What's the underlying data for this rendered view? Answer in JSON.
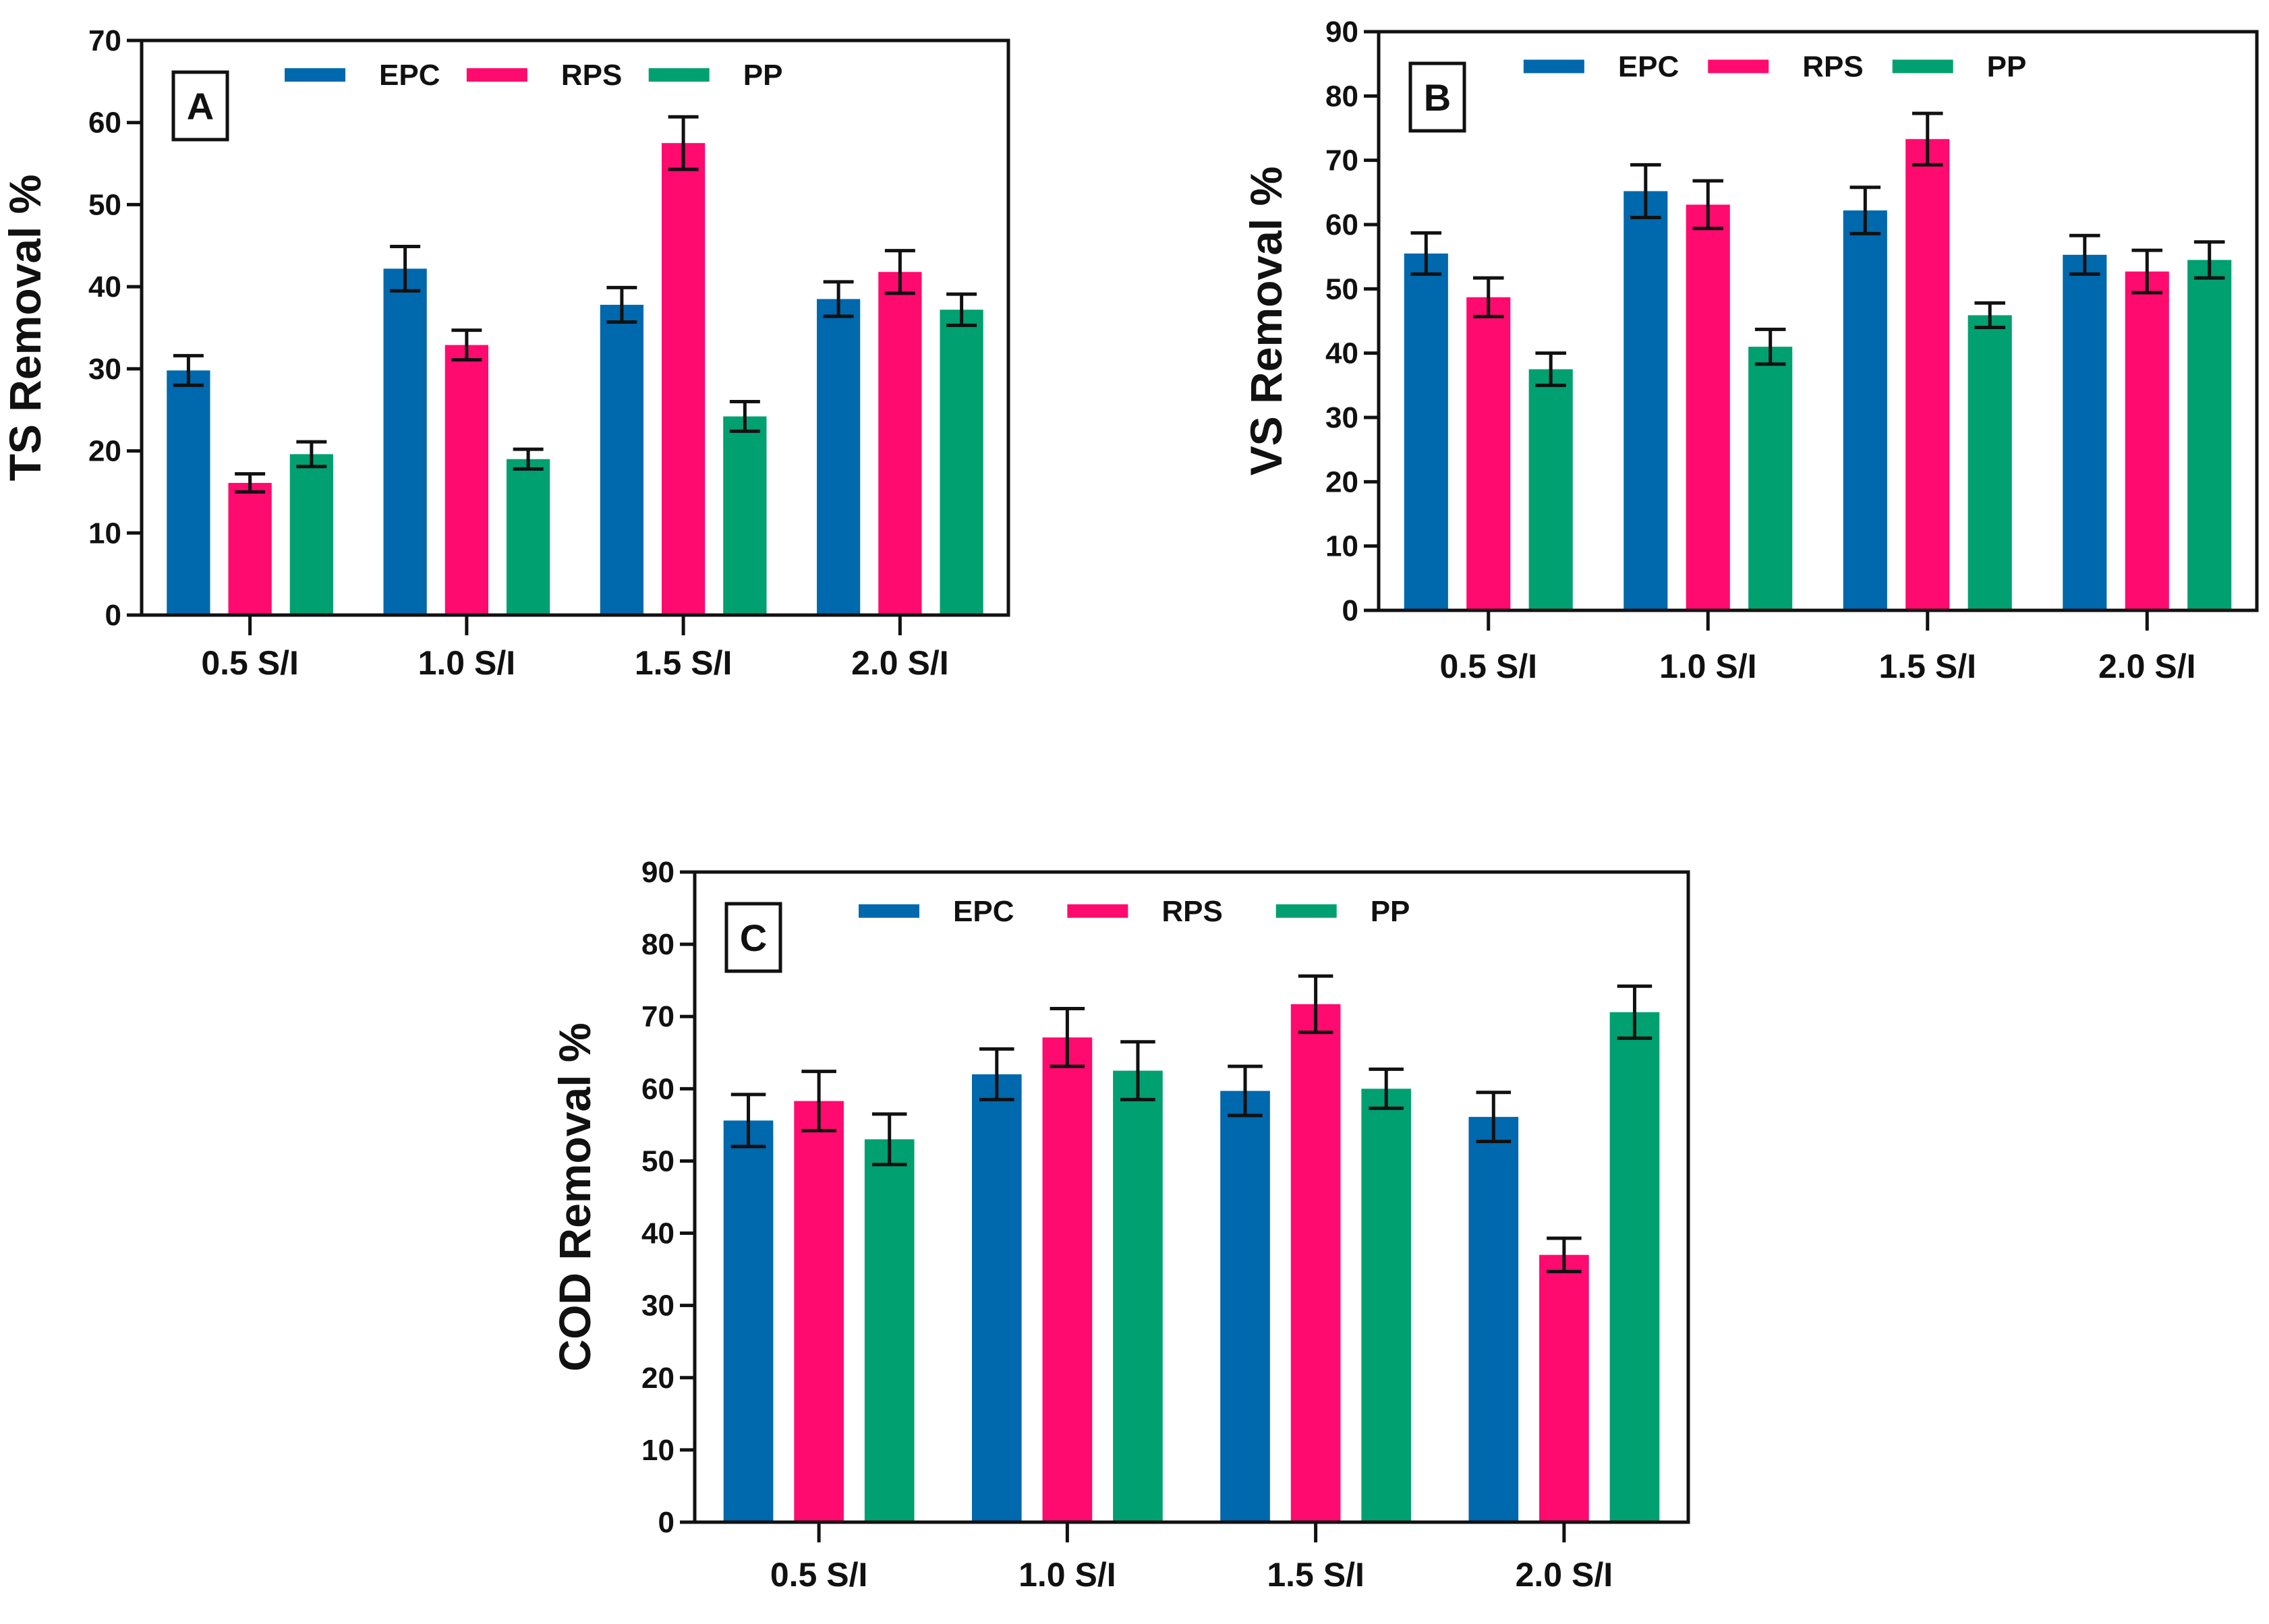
{
  "colors": {
    "EPC": "#0068AD",
    "RPS": "#FF0A6E",
    "PP": "#00A070"
  },
  "chart_data": [
    {
      "type": "bar",
      "panel": "A",
      "title": "",
      "ylabel": "TS Removal %",
      "xlabel": "",
      "ylim": [
        0,
        70
      ],
      "yticks": [
        "0",
        "10",
        "20",
        "30",
        "40",
        "50",
        "60",
        "70"
      ],
      "categories": [
        "0.5 S/I",
        "1.0  S/I",
        "1.5  S/I",
        "2.0  S/I"
      ],
      "legend_position": "top",
      "series": [
        {
          "name": "EPC",
          "values": [
            29.8,
            42.2,
            37.8,
            38.5
          ],
          "errors": [
            1.8,
            2.7,
            2.1,
            2.1
          ]
        },
        {
          "name": "RPS",
          "values": [
            16.1,
            32.9,
            57.5,
            41.8
          ],
          "errors": [
            1.1,
            1.8,
            3.2,
            2.6
          ]
        },
        {
          "name": "PP",
          "values": [
            19.6,
            19.0,
            24.2,
            37.2
          ],
          "errors": [
            1.5,
            1.2,
            1.8,
            1.9
          ]
        }
      ]
    },
    {
      "type": "bar",
      "panel": "B",
      "title": "",
      "ylabel": "VS Removal %",
      "xlabel": "",
      "ylim": [
        0,
        90
      ],
      "yticks": [
        "0",
        "10",
        "20",
        "30",
        "40",
        "50",
        "60",
        "70",
        "80",
        "90"
      ],
      "categories": [
        "0.5 S/I",
        "1.0 S/I",
        "1.5 S/I",
        "2.0 S/I"
      ],
      "legend_position": "top",
      "series": [
        {
          "name": "EPC",
          "values": [
            55.5,
            65.2,
            62.2,
            55.3
          ],
          "errors": [
            3.2,
            4.1,
            3.6,
            3.0
          ]
        },
        {
          "name": "RPS",
          "values": [
            48.7,
            63.1,
            73.3,
            52.7
          ],
          "errors": [
            3.0,
            3.7,
            4.0,
            3.3
          ]
        },
        {
          "name": "PP",
          "values": [
            37.5,
            41.0,
            45.9,
            54.5
          ],
          "errors": [
            2.5,
            2.7,
            1.9,
            2.8
          ]
        }
      ]
    },
    {
      "type": "bar",
      "panel": "C",
      "title": "",
      "ylabel": "COD Removal %",
      "xlabel": "",
      "ylim": [
        0,
        90
      ],
      "yticks": [
        "0",
        "10",
        "20",
        "30",
        "40",
        "50",
        "60",
        "70",
        "80",
        "90"
      ],
      "categories": [
        "0.5 S/I",
        "1.0 S/I",
        "1.5 S/I",
        "2.0 S/I"
      ],
      "legend_position": "top",
      "series": [
        {
          "name": "EPC",
          "values": [
            55.6,
            62.0,
            59.7,
            56.1
          ],
          "errors": [
            3.6,
            3.5,
            3.4,
            3.4
          ]
        },
        {
          "name": "RPS",
          "values": [
            58.3,
            67.1,
            71.7,
            37.0
          ],
          "errors": [
            4.1,
            4.0,
            3.9,
            2.3
          ]
        },
        {
          "name": "PP",
          "values": [
            53.0,
            62.5,
            60.0,
            70.6
          ],
          "errors": [
            3.5,
            4.0,
            2.7,
            3.6
          ]
        }
      ]
    }
  ]
}
